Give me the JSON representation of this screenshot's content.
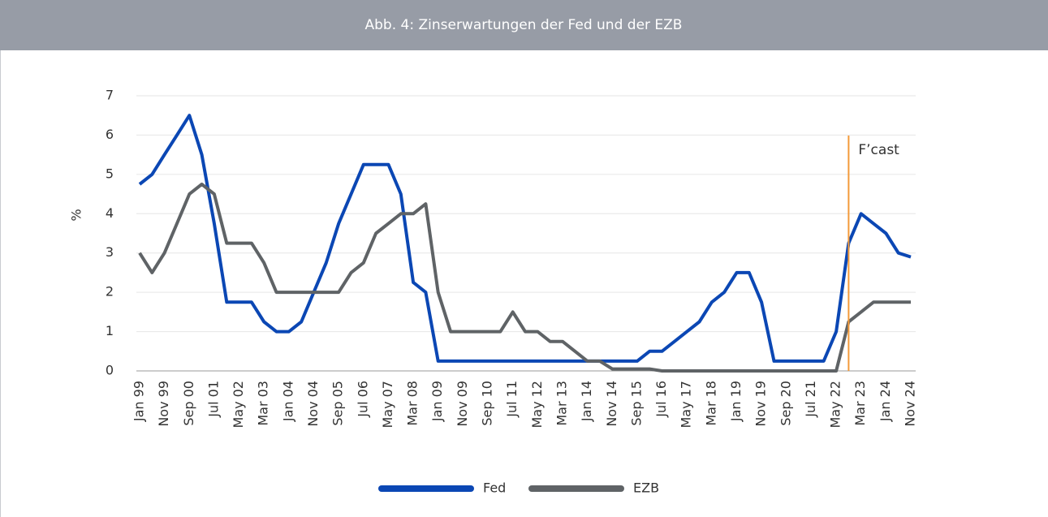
{
  "chart_data": {
    "type": "line",
    "title": "Abb. 4: Zinserwartungen der Fed und der EZB",
    "y_label": "%",
    "categories": [
      "Jan 99",
      null,
      "Nov 99",
      null,
      "Sep 00",
      null,
      "Jul 01",
      null,
      "May 02",
      null,
      "Mar 03",
      null,
      "Jan 04",
      null,
      "Nov 04",
      null,
      "Sep 05",
      null,
      "Jul 06",
      null,
      "May 07",
      null,
      "Mar 08",
      null,
      "Jan 09",
      null,
      "Nov 09",
      null,
      "Sep 10",
      null,
      "Jul 11",
      null,
      "May 12",
      null,
      "Mar 13",
      null,
      "Jan 14",
      null,
      "Nov 14",
      null,
      "Sep 15",
      null,
      "Jul 16",
      null,
      "May 17",
      null,
      "Mar 18",
      null,
      "Jan 19",
      null,
      "Nov 19",
      null,
      "Sep 20",
      null,
      "Jul 21",
      null,
      "May 22",
      null,
      "Mar 23",
      null,
      "Jan 24",
      null,
      "Nov 24"
    ],
    "series": [
      {
        "name": "Fed",
        "color": "#0b47b4",
        "values": [
          4.75,
          5.0,
          5.5,
          6.0,
          6.5,
          5.5,
          3.75,
          1.75,
          1.75,
          1.75,
          1.25,
          1.0,
          1.0,
          1.25,
          2.0,
          2.75,
          3.75,
          4.5,
          5.25,
          5.25,
          5.25,
          4.5,
          2.25,
          2.0,
          0.25,
          0.25,
          0.25,
          0.25,
          0.25,
          0.25,
          0.25,
          0.25,
          0.25,
          0.25,
          0.25,
          0.25,
          0.25,
          0.25,
          0.25,
          0.25,
          0.25,
          0.5,
          0.5,
          0.75,
          1.0,
          1.25,
          1.75,
          2.0,
          2.5,
          2.5,
          1.75,
          0.25,
          0.25,
          0.25,
          0.25,
          0.25,
          1.0,
          3.25,
          4.0,
          3.75,
          3.5,
          3.0,
          2.9
        ]
      },
      {
        "name": "EZB",
        "color": "#5f6366",
        "values": [
          3.0,
          2.5,
          3.0,
          3.75,
          4.5,
          4.75,
          4.5,
          3.25,
          3.25,
          3.25,
          2.75,
          2.0,
          2.0,
          2.0,
          2.0,
          2.0,
          2.0,
          2.5,
          2.75,
          3.5,
          3.75,
          4.0,
          4.0,
          4.25,
          2.0,
          1.0,
          1.0,
          1.0,
          1.0,
          1.0,
          1.5,
          1.0,
          1.0,
          0.75,
          0.75,
          0.5,
          0.25,
          0.25,
          0.05,
          0.05,
          0.05,
          0.05,
          0,
          0,
          0,
          0,
          0,
          0,
          0,
          0,
          0,
          0,
          0,
          0,
          0,
          0,
          0,
          1.25,
          1.5,
          1.75,
          1.75,
          1.75,
          1.75
        ]
      }
    ],
    "annotations": [
      {
        "text": "F’cast",
        "x": 57,
        "color": "#f39a3a"
      }
    ],
    "ylim": [
      0,
      7
    ],
    "yticks": [
      0,
      1,
      2,
      3,
      4,
      5,
      6,
      7
    ],
    "grid": true
  }
}
